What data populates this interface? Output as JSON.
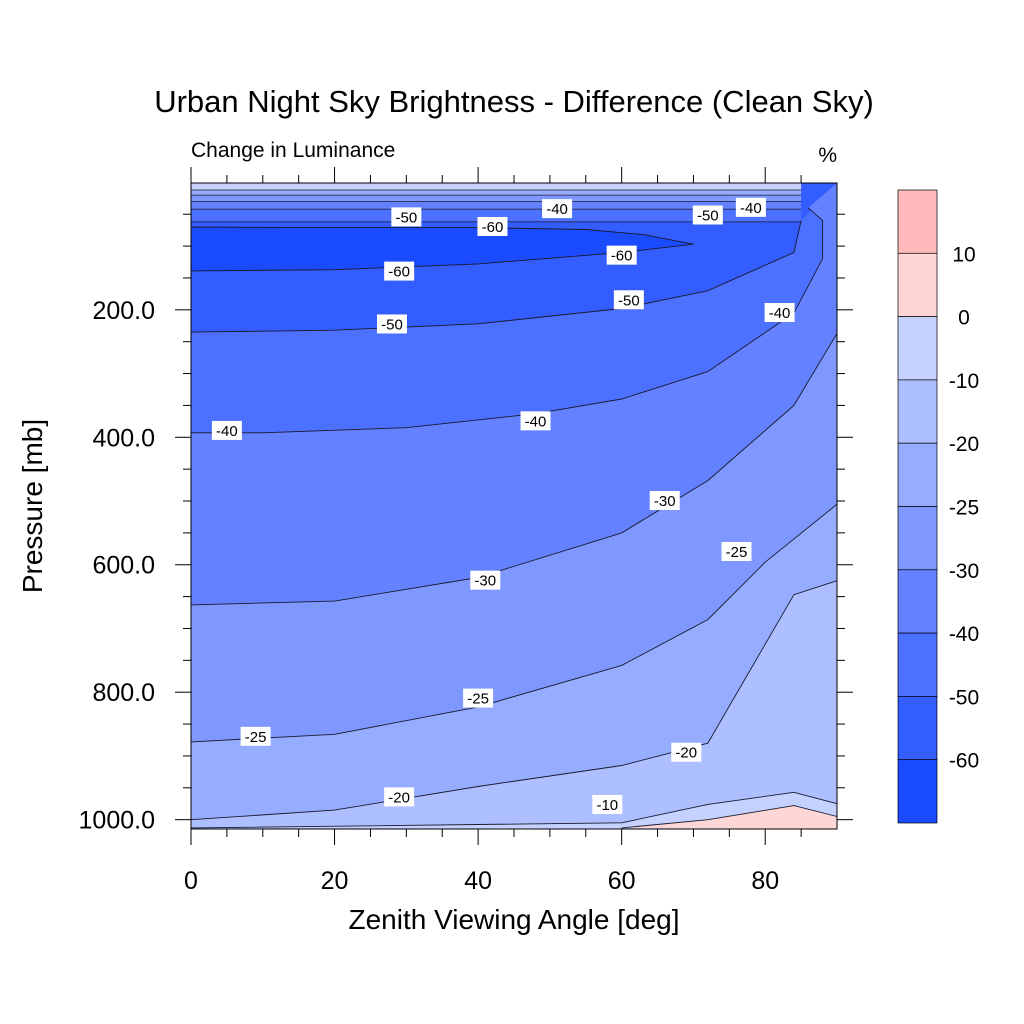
{
  "chart_data": {
    "type": "contour",
    "title": "Urban Night Sky Brightness - Difference (Clean Sky)",
    "left_string": "Change in Luminance",
    "right_string": "%",
    "xlabel": "Zenith Viewing Angle [deg]",
    "ylabel": "Pressure [mb]",
    "xlim": [
      0,
      90
    ],
    "ylim": [
      1013,
      1
    ],
    "x_ticks": [
      0,
      20,
      40,
      60,
      80
    ],
    "x_tick_labels": [
      "0",
      "20",
      "40",
      "60",
      "80"
    ],
    "y_ticks": [
      200,
      400,
      600,
      800,
      1000
    ],
    "y_tick_labels": [
      "200.0",
      "400.0",
      "600.0",
      "800.0",
      "1000.0"
    ],
    "contour_levels": [
      -60,
      -50,
      -40,
      -30,
      -25,
      -20,
      -10,
      0,
      10
    ],
    "colorbar": {
      "labels": [
        "10",
        "0",
        "-10",
        "-20",
        "-25",
        "-30",
        "-40",
        "-50",
        "-60"
      ],
      "colors": [
        "#ffbbbb",
        "#ffd6d6",
        "#c5d2ff",
        "#aebfff",
        "#95acff",
        "#7e98ff",
        "#6482ff",
        "#4c70ff",
        "#335dff",
        "#1a4bff"
      ]
    },
    "contour_lines": [
      {
        "level": -60,
        "x": [
          0,
          20,
          40,
          60,
          70,
          63,
          55,
          40,
          20,
          0
        ],
        "y": [
          139,
          137,
          128,
          110,
          97,
          82,
          74,
          71,
          71,
          70
        ]
      },
      {
        "level": -50,
        "x": [
          0,
          20,
          40,
          60,
          72,
          84,
          85
        ],
        "y": [
          235,
          232,
          222,
          198,
          170,
          110,
          60
        ]
      },
      {
        "level": -40,
        "x": [
          0,
          10,
          30,
          48,
          60,
          72,
          84,
          88,
          88,
          86
        ],
        "y": [
          393,
          393,
          385,
          363,
          340,
          297,
          205,
          120,
          60,
          40
        ]
      },
      {
        "level": -30,
        "x": [
          0,
          20,
          40,
          60,
          72,
          84,
          90
        ],
        "y": [
          663,
          657,
          620,
          550,
          468,
          350,
          237
        ]
      },
      {
        "level": -25,
        "x": [
          0,
          20,
          40,
          60,
          72,
          80,
          90
        ],
        "y": [
          878,
          866,
          823,
          758,
          686,
          596,
          505
        ]
      },
      {
        "level": -20,
        "x": [
          0,
          20,
          40,
          60,
          72,
          84,
          90
        ],
        "y": [
          1000,
          985,
          948,
          915,
          880,
          647,
          625
        ]
      },
      {
        "level": -10,
        "x": [
          0,
          60,
          72,
          84,
          90
        ],
        "y": [
          1013,
          1005,
          976,
          957,
          975
        ]
      },
      {
        "level": 0,
        "x": [
          60,
          72,
          84,
          90
        ],
        "y": [
          1013,
          1000,
          978,
          995
        ]
      }
    ],
    "contour_labels": [
      {
        "text": "-40",
        "x": 5,
        "y": 390
      },
      {
        "text": "-50",
        "x": 28,
        "y": 223
      },
      {
        "text": "-60",
        "x": 29,
        "y": 140
      },
      {
        "text": "-50",
        "x": 30,
        "y": 55
      },
      {
        "text": "-60",
        "x": 42,
        "y": 70
      },
      {
        "text": "-40",
        "x": 51,
        "y": 42
      },
      {
        "text": "-40",
        "x": 48,
        "y": 375
      },
      {
        "text": "-60",
        "x": 60,
        "y": 115
      },
      {
        "text": "-50",
        "x": 61,
        "y": 185
      },
      {
        "text": "-50",
        "x": 72,
        "y": 52
      },
      {
        "text": "-40",
        "x": 78,
        "y": 40
      },
      {
        "text": "-40",
        "x": 82,
        "y": 205
      },
      {
        "text": "-30",
        "x": 41,
        "y": 625
      },
      {
        "text": "-30",
        "x": 66,
        "y": 500
      },
      {
        "text": "-25",
        "x": 76,
        "y": 580
      },
      {
        "text": "-25",
        "x": 40,
        "y": 810
      },
      {
        "text": "-25",
        "x": 9,
        "y": 870
      },
      {
        "text": "-20",
        "x": 29,
        "y": 965
      },
      {
        "text": "-20",
        "x": 69,
        "y": 895
      },
      {
        "text": "-10",
        "x": 58,
        "y": 977
      }
    ]
  }
}
